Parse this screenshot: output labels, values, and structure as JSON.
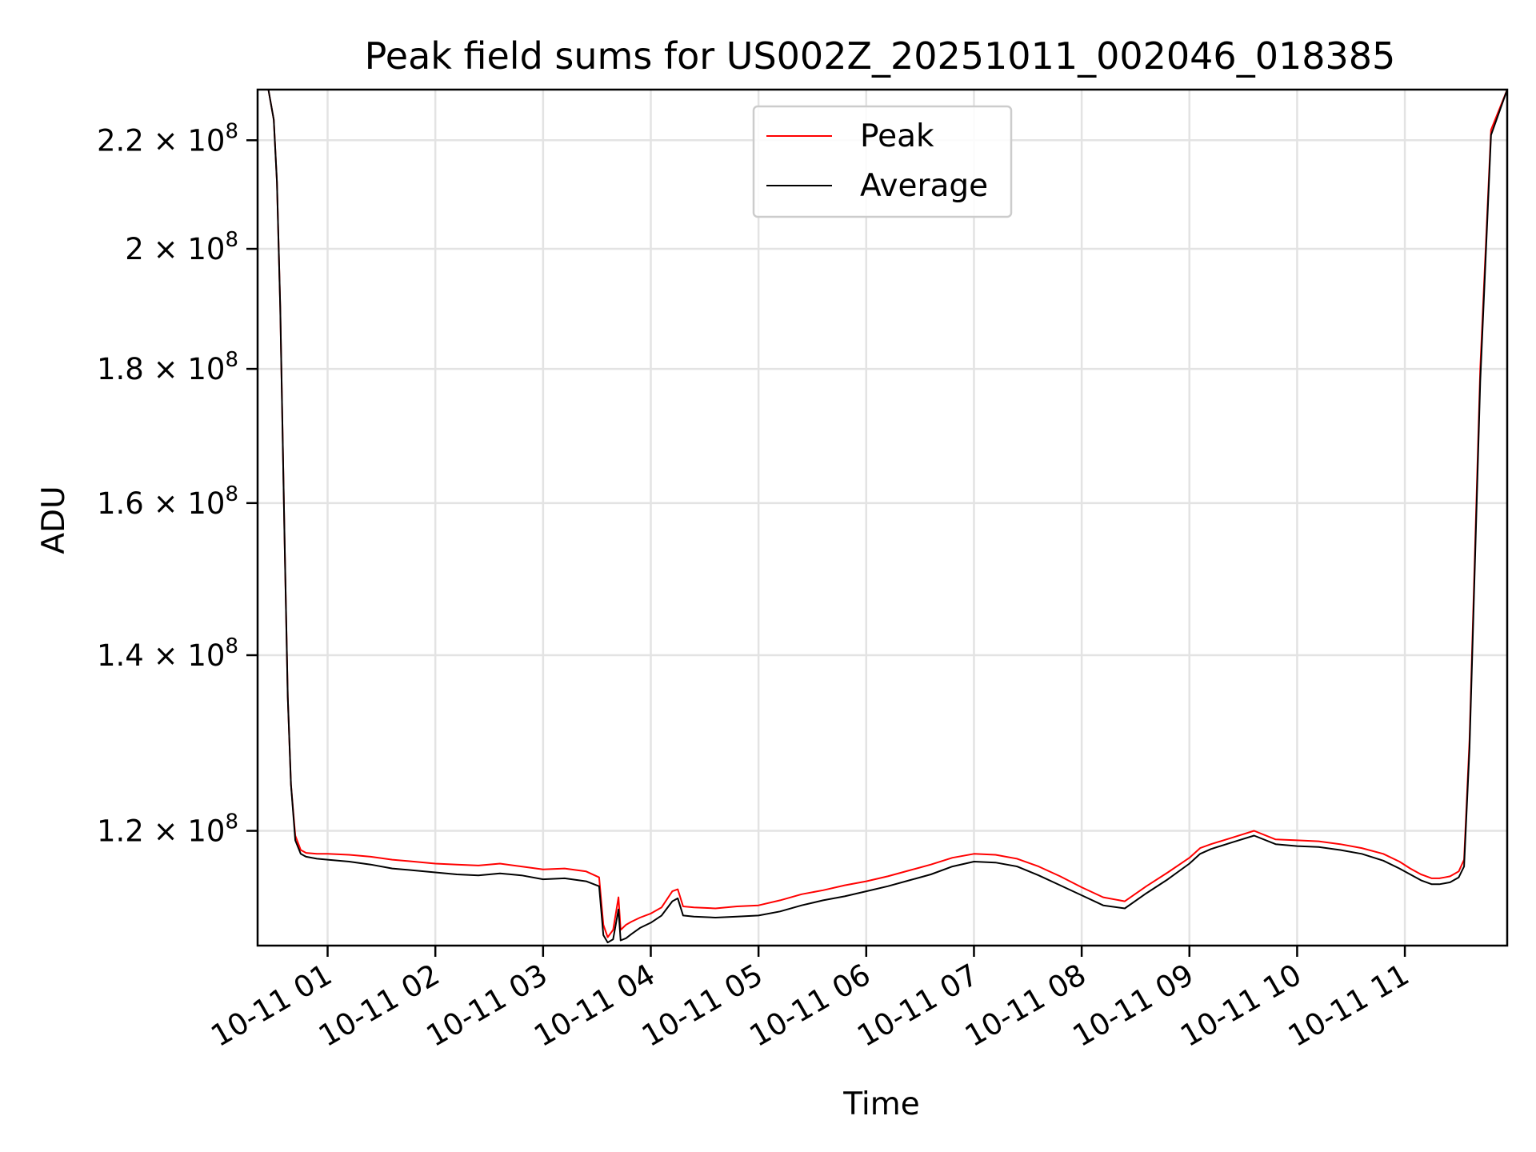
{
  "chart_data": {
    "type": "line",
    "title": "Peak field sums for US002Z_20251011_002046_018385",
    "xlabel": "Time",
    "ylabel": "ADU",
    "yscale": "log",
    "xlim": [
      0.35,
      11.95
    ],
    "ylim": [
      108500000.0,
      230000000.0
    ],
    "grid": true,
    "legend_position": "upper-center",
    "x_ticks": [
      {
        "value": 1,
        "label": "10-11 01"
      },
      {
        "value": 2,
        "label": "10-11 02"
      },
      {
        "value": 3,
        "label": "10-11 03"
      },
      {
        "value": 4,
        "label": "10-11 04"
      },
      {
        "value": 5,
        "label": "10-11 05"
      },
      {
        "value": 6,
        "label": "10-11 06"
      },
      {
        "value": 7,
        "label": "10-11 07"
      },
      {
        "value": 8,
        "label": "10-11 08"
      },
      {
        "value": 9,
        "label": "10-11 09"
      },
      {
        "value": 10,
        "label": "10-11 10"
      },
      {
        "value": 11,
        "label": "10-11 11"
      }
    ],
    "y_ticks": [
      {
        "value": 120000000.0,
        "mantissa": "1.2",
        "base": "10",
        "exp": "8"
      },
      {
        "value": 140000000.0,
        "mantissa": "1.4",
        "base": "10",
        "exp": "8"
      },
      {
        "value": 160000000.0,
        "mantissa": "1.6",
        "base": "10",
        "exp": "8"
      },
      {
        "value": 180000000.0,
        "mantissa": "1.8",
        "base": "10",
        "exp": "8"
      },
      {
        "value": 200000000.0,
        "mantissa": "2",
        "base": "10",
        "exp": "8"
      },
      {
        "value": 220000000.0,
        "mantissa": "2.2",
        "base": "10",
        "exp": "8"
      }
    ],
    "series": [
      {
        "name": "Peak",
        "color": "#ff0000",
        "x": [
          0.35,
          0.45,
          0.5,
          0.53,
          0.56,
          0.6,
          0.63,
          0.66,
          0.7,
          0.75,
          0.8,
          0.9,
          1.0,
          1.2,
          1.4,
          1.6,
          1.8,
          2.0,
          2.2,
          2.4,
          2.6,
          2.8,
          3.0,
          3.2,
          3.4,
          3.52,
          3.56,
          3.6,
          3.65,
          3.7,
          3.72,
          3.77,
          3.82,
          3.9,
          4.0,
          4.1,
          4.2,
          4.25,
          4.3,
          4.4,
          4.6,
          4.8,
          5.0,
          5.2,
          5.4,
          5.6,
          5.8,
          6.0,
          6.2,
          6.4,
          6.6,
          6.8,
          7.0,
          7.2,
          7.4,
          7.6,
          7.8,
          8.0,
          8.2,
          8.4,
          8.6,
          8.8,
          9.0,
          9.1,
          9.2,
          9.4,
          9.6,
          9.8,
          10.0,
          10.2,
          10.4,
          10.6,
          10.8,
          10.95,
          11.05,
          11.15,
          11.25,
          11.32,
          11.37,
          11.42,
          11.5,
          11.55,
          11.6,
          11.7,
          11.8,
          11.95
        ],
        "values": [
          230000000.0,
          230000000.0,
          224000000.0,
          212000000.0,
          190000000.0,
          155000000.0,
          135000000.0,
          125000000.0,
          119500000.0,
          118000000.0,
          117700000.0,
          117600000.0,
          117600000.0,
          117500000.0,
          117300000.0,
          117000000.0,
          116800000.0,
          116600000.0,
          116500000.0,
          116400000.0,
          116600000.0,
          116300000.0,
          116000000.0,
          116100000.0,
          115800000.0,
          115200000.0,
          110500000.0,
          109300000.0,
          110000000.0,
          113200000.0,
          110000000.0,
          110500000.0,
          110800000.0,
          111200000.0,
          111600000.0,
          112200000.0,
          113800000.0,
          114000000.0,
          112300000.0,
          112200000.0,
          112100000.0,
          112300000.0,
          112400000.0,
          112900000.0,
          113500000.0,
          113900000.0,
          114400000.0,
          114800000.0,
          115300000.0,
          115900000.0,
          116500000.0,
          117200000.0,
          117600000.0,
          117500000.0,
          117100000.0,
          116300000.0,
          115300000.0,
          114200000.0,
          113200000.0,
          112800000.0,
          114300000.0,
          115700000.0,
          117200000.0,
          118200000.0,
          118600000.0,
          119300000.0,
          120000000.0,
          119100000.0,
          119000000.0,
          118900000.0,
          118600000.0,
          118200000.0,
          117600000.0,
          116800000.0,
          116100000.0,
          115500000.0,
          115100000.0,
          115100000.0,
          115200000.0,
          115300000.0,
          115800000.0,
          117000000.0,
          130000000.0,
          180000000.0,
          222000000.0,
          230000000.0
        ]
      },
      {
        "name": "Average",
        "color": "#000000",
        "x": [
          0.35,
          0.45,
          0.5,
          0.53,
          0.56,
          0.6,
          0.63,
          0.66,
          0.7,
          0.75,
          0.8,
          0.9,
          1.0,
          1.2,
          1.4,
          1.6,
          1.8,
          2.0,
          2.2,
          2.4,
          2.6,
          2.8,
          3.0,
          3.2,
          3.4,
          3.52,
          3.56,
          3.6,
          3.65,
          3.7,
          3.72,
          3.77,
          3.82,
          3.9,
          4.0,
          4.1,
          4.2,
          4.25,
          4.3,
          4.4,
          4.6,
          4.8,
          5.0,
          5.2,
          5.4,
          5.6,
          5.8,
          6.0,
          6.2,
          6.4,
          6.6,
          6.8,
          7.0,
          7.2,
          7.4,
          7.6,
          7.8,
          8.0,
          8.2,
          8.4,
          8.6,
          8.8,
          9.0,
          9.1,
          9.2,
          9.4,
          9.6,
          9.8,
          10.0,
          10.2,
          10.4,
          10.6,
          10.8,
          10.95,
          11.05,
          11.15,
          11.25,
          11.32,
          11.37,
          11.42,
          11.5,
          11.55,
          11.6,
          11.7,
          11.8,
          11.95
        ],
        "values": [
          230000000.0,
          230000000.0,
          224000000.0,
          212000000.0,
          190000000.0,
          155000000.0,
          135000000.0,
          125000000.0,
          119000000.0,
          117600000.0,
          117300000.0,
          117100000.0,
          117000000.0,
          116800000.0,
          116500000.0,
          116100000.0,
          115900000.0,
          115700000.0,
          115500000.0,
          115400000.0,
          115600000.0,
          115400000.0,
          115000000.0,
          115100000.0,
          114800000.0,
          114300000.0,
          109500000.0,
          108800000.0,
          109100000.0,
          112000000.0,
          109000000.0,
          109200000.0,
          109600000.0,
          110200000.0,
          110700000.0,
          111400000.0,
          112800000.0,
          113100000.0,
          111400000.0,
          111300000.0,
          111200000.0,
          111300000.0,
          111400000.0,
          111800000.0,
          112400000.0,
          112900000.0,
          113300000.0,
          113800000.0,
          114300000.0,
          114900000.0,
          115500000.0,
          116300000.0,
          116800000.0,
          116700000.0,
          116300000.0,
          115400000.0,
          114400000.0,
          113400000.0,
          112400000.0,
          112100000.0,
          113600000.0,
          115000000.0,
          116600000.0,
          117600000.0,
          118100000.0,
          118800000.0,
          119500000.0,
          118600000.0,
          118400000.0,
          118300000.0,
          118000000.0,
          117600000.0,
          116900000.0,
          116100000.0,
          115500000.0,
          114900000.0,
          114500000.0,
          114500000.0,
          114600000.0,
          114700000.0,
          115200000.0,
          116300000.0,
          129000000.0,
          178000000.0,
          221000000.0,
          230000000.0
        ]
      }
    ]
  }
}
